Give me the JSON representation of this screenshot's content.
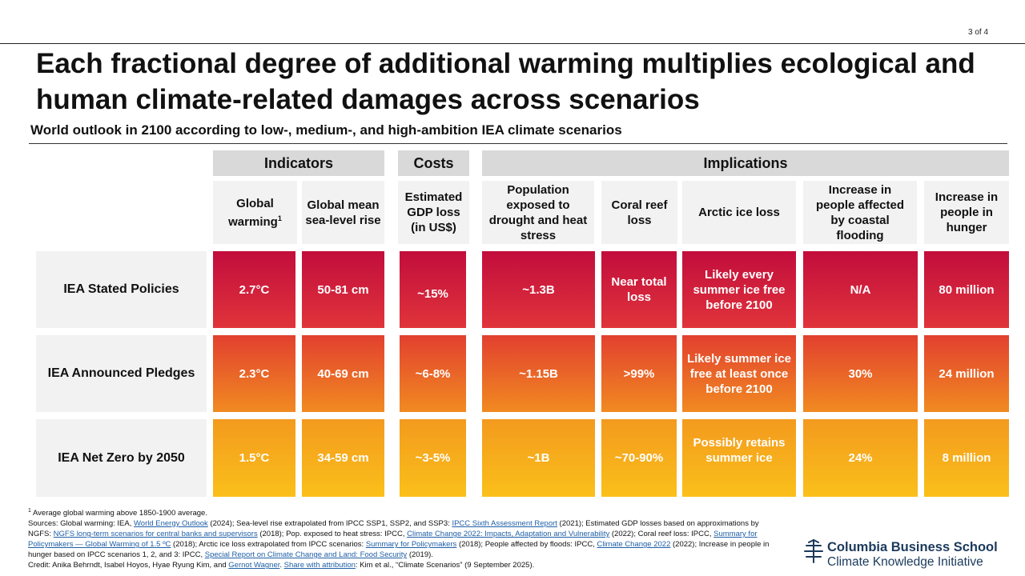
{
  "page_number": "3 of 4",
  "title": "Each fractional degree of additional warming multiplies ecological and human climate-related damages across scenarios",
  "subtitle": "World outlook in 2100 according to low-, medium-, and high-ambition IEA climate scenarios",
  "groups": {
    "indicators": "Indicators",
    "costs": "Costs",
    "implications": "Implications"
  },
  "columns": {
    "global_warming": "Global warming",
    "global_warming_sup": "1",
    "sea_level": "Global mean sea-level rise",
    "gdp_loss": "Estimated GDP loss (in US$)",
    "population": "Population exposed to drought and heat stress",
    "coral": "Coral reef loss",
    "arctic": "Arctic ice loss",
    "flooding": "Increase in people affected by coastal flooding",
    "hunger": "Increase in people in hunger"
  },
  "rows": [
    {
      "name": "IEA Stated Policies",
      "warming": "2.7°C",
      "sea": "50-81 cm",
      "gdp": "~15%",
      "pop": "~1.3B",
      "coral": "Near total loss",
      "arctic": "Likely every summer ice free before 2100",
      "flood": "N/A",
      "hunger": "80 million"
    },
    {
      "name": "IEA Announced Pledges",
      "warming": "2.3°C",
      "sea": "40-69 cm",
      "gdp": "~6-8%",
      "pop": "~1.15B",
      "coral": ">99%",
      "arctic": "Likely summer ice free at least once before 2100",
      "flood": "30%",
      "hunger": "24 million"
    },
    {
      "name": "IEA Net Zero by 2050",
      "warming": "1.5°C",
      "sea": "34-59 cm",
      "gdp": "~3-5%",
      "pop": "~1B",
      "coral": "~70-90%",
      "arctic": "Possibly retains summer ice",
      "flood": "24%",
      "hunger": "8 million"
    }
  ],
  "footnotes": {
    "fn_sup": "1",
    "fn1": " Average global warming above 1850-1900 average.",
    "s1": "Sources: Global warming: IEA, ",
    "l1": "World Energy Outlook",
    "s2": " (2024); Sea-level rise extrapolated from IPCC SSP1, SSP2, and SSP3: ",
    "l2": "IPCC Sixth Assessment Report",
    "s3": " (2021); Estimated GDP losses based on approximations by NGFS: ",
    "l3": "NGFS long-term scenarios for central banks and supervisors",
    "s4": " (2018); Pop. exposed to heat stress: IPCC, ",
    "l4": "Climate Change 2022: Impacts, Adaptation and Vulnerability",
    "s5": " (2022); Coral reef loss: IPCC, ",
    "l5": "Summary for Policymakers — Global Warming of 1.5 ºC",
    "s6": " (2018); Arctic ice loss extrapolated from IPCC scenarios: ",
    "l6": "Summary for Policymakers",
    "s7": " (2018); People affected by floods: IPCC, ",
    "l7": "Climate Change 2022",
    "s8": " (2022); Increase in people in hunger based on IPCC scenarios 1, 2, and 3: IPCC, ",
    "l8": "Special Report on Climate Change and Land: Food Security",
    "s9": " (2019).",
    "c1": "Credit: Anika Behrndt, Isabel Hoyos, Hyae Ryung Kim, and ",
    "cl1": "Gernot Wagner",
    "c2": ". ",
    "cl2": "Share with attribution",
    "c3": ": Kim et al., “Climate Scenarios” (9 September 2025)."
  },
  "logo": {
    "line1": "Columbia Business School",
    "line2": "Climate Knowledge Initiative",
    "icon": "columbia-crown-icon",
    "color": "#1b3a5c"
  },
  "colors": {
    "row1": "#c20d3c",
    "row2": "#e2402f",
    "row3": "#f39a1e"
  }
}
